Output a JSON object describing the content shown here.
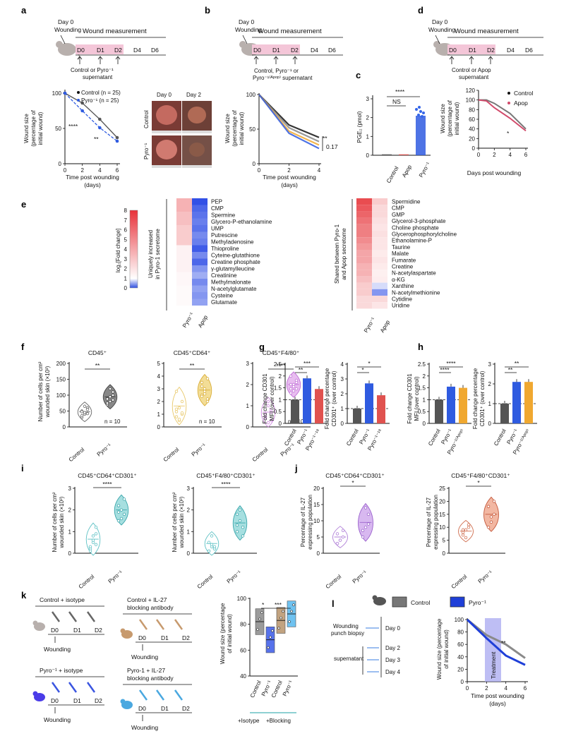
{
  "panel_labels": {
    "a": "a",
    "b": "b",
    "c": "c",
    "d": "d",
    "e": "e",
    "f": "f",
    "g": "g",
    "h": "h",
    "i": "i",
    "j": "j",
    "k": "k",
    "l": "l"
  },
  "colors": {
    "control": "#555555",
    "pyro": "#2f5be0",
    "pyro18": "#e0524f",
    "apop": "#f0a830",
    "teal": "#4bb3b8",
    "violet": "#b07fd8",
    "gold": "#e8c86a",
    "pink": "#d14b6b",
    "wound_band": "#f4c6d8"
  },
  "a": {
    "day0_wounding": "Day 0\nWounding",
    "wound_measurement": "Wound measurement",
    "days": [
      "D0",
      "D1",
      "D2",
      "D4",
      "D6"
    ],
    "treatment": "Control or Pyro⁻¹\nsupernatant",
    "legend": [
      "Control (n = 25)",
      "Pyro⁻¹ (n = 25)"
    ],
    "ylabel": "Wound size\n(percentage of\ninitial wound)",
    "xlabel": "Time post wounding\n(days)",
    "sig": [
      "****",
      "**"
    ],
    "photo_cols": [
      "Day 0",
      "Day 2"
    ],
    "photo_rows": [
      "Control",
      "Pyro⁻¹"
    ]
  },
  "b": {
    "day0_wounding": "Day 0\nWounding",
    "wound_measurement": "Wound measurement",
    "days": [
      "D0",
      "D1",
      "D2",
      "D4",
      "D6"
    ],
    "treatment": "Control, Pyro⁻¹ or\nPyro⁻¹⁽ᴬᵖᵒᵖ⁾ supernatant",
    "ylabel": "Wound size\n(percentage of\ninitial wound)",
    "xlabel": "Time post wounding\n(days)",
    "sig": [
      "**",
      "0.17"
    ]
  },
  "c": {
    "ylabel": "PGE₂ (pmol)",
    "categories": [
      "Control",
      "Apop",
      "Pyro⁻¹"
    ],
    "sig": [
      "****",
      "NS"
    ]
  },
  "d": {
    "day0_wounding": "Day 0\nWounding",
    "wound_measurement": "Wound measurement",
    "days": [
      "D0",
      "D1",
      "D2",
      "D4",
      "D6"
    ],
    "treatment": "Control or Apop\nsupernatant",
    "legend": [
      "Control",
      "Apop"
    ],
    "ylabel": "Wound size\n(percentage of\ninitial wound)",
    "xlabel": "Days post wounding",
    "sig": [
      "*"
    ]
  },
  "e": {
    "colorbar_label": "log₂[Fold change]",
    "colorbar_ticks": [
      "8",
      "7",
      "6",
      "5",
      "4",
      "3",
      "2",
      "1",
      "0"
    ],
    "left_group": "Uniquely increased\nin Pyro-1  secretome",
    "right_group": "Shared between Pyro-1\nand Apop secretome",
    "columns": [
      "Pyro⁻¹",
      "Apop"
    ],
    "left_rows": [
      "PEP",
      "CMP",
      "Spermine",
      "Glycero-P-ethanolamine",
      "UMP",
      "Putrescine",
      "Methyladenosine",
      "Thioproline",
      "Cyteine-glutathione",
      "Creatine phosphate",
      "γ-glutamylleucine",
      "Creatinine",
      "Methylmalonate",
      "N-acetylglutamate",
      "Cysteine",
      "Glutamate"
    ],
    "right_rows": [
      "Spermidine",
      "CMP",
      "GMP",
      "Glycerol-3-phosphate",
      "Choline phosphate",
      "Glycerophosphorylcholine",
      "Ethanolamine-P",
      "Taurine",
      "Malate",
      "Fumarate",
      "Creatine",
      "N-acetylaspartate",
      "α-KG",
      "Xanthine",
      "N-acetylmethionine",
      "Cytidine",
      "Uridine"
    ]
  },
  "f": {
    "ylabel": "Number of cells per cm²\nwounded skin (×10³)",
    "titles": [
      "CD45⁺",
      "CD45⁺CD64⁺",
      "CD45⁺F4/80⁺"
    ],
    "categories": [
      "Control",
      "Pyro⁻¹"
    ],
    "n": "n = 10",
    "sig": [
      "**",
      "**",
      "****"
    ]
  },
  "g": {
    "ylabel1": "Fold change CD301\nMFI (over control)",
    "ylabel2": "Fold change percentage\nCD301⁺ (over control)",
    "categories": [
      "Control",
      "Pyro⁻¹",
      "Pyro⁻¹⁻¹⁸"
    ],
    "sig1": [
      "***",
      "**"
    ],
    "sig2": [
      "*",
      "*"
    ]
  },
  "h": {
    "ylabel1": "Fold change CD301\nMFI (over control)",
    "ylabel2": "Fold change percentage\nCD301⁺ (over control)",
    "categories": [
      "Control",
      "Pyro⁻¹",
      "Pyro⁻¹⁽ᴬᵖᵒᵖ⁾"
    ],
    "sig1": [
      "****",
      "****"
    ],
    "sig2": [
      "**",
      "**"
    ]
  },
  "i": {
    "titles": [
      "CD45⁺CD64⁺CD301⁺",
      "CD45⁺F4/80⁺CD301⁺"
    ],
    "ylabel": "Number of cells per cm²\nwounded skin (×10³)",
    "categories": [
      "Control",
      "Pyro⁻¹"
    ],
    "sig": [
      "****",
      "****"
    ]
  },
  "j": {
    "titles": [
      "CD45⁺CD64⁺CD301⁺",
      "CD45⁺F4/80⁺CD301⁺"
    ],
    "ylabel": "Percentage of IL-27\nexpressing population",
    "categories": [
      "Control",
      "Pyro⁻¹"
    ],
    "sig": [
      "*",
      "*"
    ]
  },
  "k": {
    "groups": [
      "Control + isotype",
      "Control + IL-27\nblocking antibody",
      "Pyro⁻¹ + isotype",
      "Pyro-1 + IL-27\nblocking antibody"
    ],
    "days": [
      "D0",
      "D1",
      "D2"
    ],
    "wounding": "Wounding",
    "ylabel": "Wound size (percentage\nof initial wound)",
    "categories": [
      "Control",
      "Pyro⁻¹",
      "Control",
      "Pyro⁻¹"
    ],
    "group_labels": [
      "+Isotype",
      "+Blocking"
    ],
    "sig": [
      "*",
      "***"
    ]
  },
  "l": {
    "legend": [
      "Control",
      "Pyro⁻¹"
    ],
    "steps": [
      "Wounding\npunch biopsy",
      "supernatant"
    ],
    "days": [
      "Day 0",
      "Day 2",
      "Day 3",
      "Day 4"
    ],
    "treatment": "Treatment",
    "ylabel": "Wound size (percentage\nof initial wound)",
    "xlabel": "Time post wounding\n(days)",
    "sig": [
      "**"
    ]
  },
  "chart_data": [
    {
      "panel": "a",
      "type": "line",
      "x": [
        0,
        2,
        4,
        6
      ],
      "xlim": [
        0,
        6
      ],
      "ylim": [
        0,
        100
      ],
      "series": [
        {
          "name": "Control (n = 25)",
          "values": [
            100,
            86,
            63,
            37
          ]
        },
        {
          "name": "Pyro⁻¹ (n = 25)",
          "values": [
            100,
            75,
            51,
            32
          ]
        }
      ]
    },
    {
      "panel": "b",
      "type": "line",
      "x": [
        0,
        2,
        4
      ],
      "xlim": [
        0,
        4
      ],
      "ylim": [
        0,
        100
      ],
      "series": [
        {
          "values": [
            100,
            56,
            38
          ]
        },
        {
          "values": [
            100,
            52,
            32
          ]
        },
        {
          "values": [
            100,
            47,
            27
          ]
        },
        {
          "values": [
            100,
            44,
            22
          ]
        }
      ]
    },
    {
      "panel": "c",
      "type": "bar",
      "categories": [
        "Control",
        "Apop",
        "Pyro⁻¹"
      ],
      "values": [
        0.05,
        0.05,
        2.1
      ],
      "ylim": [
        0,
        3
      ]
    },
    {
      "panel": "d",
      "type": "line",
      "x": [
        0,
        1,
        2,
        4,
        6
      ],
      "xlim": [
        0,
        6
      ],
      "ylim": [
        0,
        120
      ],
      "series": [
        {
          "name": "Control",
          "values": [
            100,
            100,
            93,
            72,
            40
          ]
        },
        {
          "name": "Apop",
          "values": [
            100,
            98,
            84,
            62,
            36
          ]
        }
      ]
    },
    {
      "panel": "f",
      "type": "scatter",
      "ylim_list": [
        [
          0,
          200
        ],
        [
          0,
          5
        ],
        [
          0,
          3
        ]
      ],
      "series": [
        {
          "name": "CD45⁺",
          "control": [
            50,
            40,
            60,
            30,
            45,
            55,
            35,
            65,
            42,
            48
          ],
          "pyro": [
            90,
            80,
            100,
            70,
            120,
            85,
            75,
            95,
            110,
            88
          ]
        },
        {
          "name": "CD45⁺CD64⁺",
          "control": [
            1.2,
            0.5,
            2.0,
            0.8,
            1.5,
            1.0,
            2.8,
            0.6,
            1.1,
            1.4
          ],
          "pyro": [
            2.5,
            3.0,
            2.2,
            3.5,
            2.8,
            2.0,
            3.2,
            2.6,
            3.8,
            2.4
          ]
        },
        {
          "name": "CD45⁺F4/80⁺",
          "control": [
            0.5,
            0.2,
            0.8,
            0.4,
            1.0,
            0.3,
            0.6,
            1.2,
            0.7,
            0.4
          ],
          "pyro": [
            1.8,
            2.0,
            2.2,
            1.6,
            1.9,
            2.1,
            2.4,
            1.7,
            1.8,
            2.0
          ]
        }
      ]
    },
    {
      "panel": "g",
      "type": "bar",
      "categories": [
        "Control",
        "Pyro⁻¹",
        "Pyro⁻¹⁻¹⁸"
      ],
      "series": [
        {
          "name": "Fold change CD301 MFI",
          "values": [
            1.0,
            1.9,
            1.45
          ]
        },
        {
          "name": "Fold change percentage CD301⁺",
          "values": [
            1.0,
            2.7,
            1.9
          ]
        }
      ],
      "ylim_list": [
        [
          0,
          2.5
        ],
        [
          0,
          4
        ]
      ]
    },
    {
      "panel": "h",
      "type": "bar",
      "categories": [
        "Control",
        "Pyro⁻¹",
        "Pyro⁻¹⁽ᴬᵖᵒᵖ⁾"
      ],
      "series": [
        {
          "name": "Fold change CD301 MFI",
          "values": [
            1.0,
            1.55,
            1.5
          ]
        },
        {
          "name": "Fold change percentage CD301⁺",
          "values": [
            1.0,
            2.1,
            2.1
          ]
        }
      ],
      "ylim_list": [
        [
          0,
          2.5
        ],
        [
          0,
          3
        ]
      ]
    },
    {
      "panel": "i",
      "type": "scatter",
      "ylim": [
        0,
        3
      ],
      "series": [
        {
          "name": "CD45⁺CD64⁺CD301⁺",
          "control": [
            0.2,
            0.5,
            1.2,
            0.3,
            0.8,
            0.4,
            0.1,
            0.6,
            0.9
          ],
          "pyro": [
            1.5,
            2.0,
            1.8,
            2.2,
            1.6,
            2.5,
            1.9
          ]
        },
        {
          "name": "CD45⁺F4/80⁺CD301⁺",
          "control": [
            0.1,
            0.3,
            0.2,
            0.5,
            0.8,
            0.2,
            0.1,
            0.4,
            0.3
          ],
          "pyro": [
            1.0,
            1.5,
            1.2,
            1.8,
            2.0,
            0.8,
            1.3
          ]
        }
      ]
    },
    {
      "panel": "j",
      "type": "scatter",
      "ylim_list": [
        [
          0,
          20
        ],
        [
          0,
          25
        ]
      ],
      "series": [
        {
          "name": "CD45⁺CD64⁺CD301⁺",
          "control": [
            3,
            4,
            5,
            6,
            4,
            7,
            3
          ],
          "pyro": [
            5,
            8,
            12,
            7,
            14,
            9
          ]
        },
        {
          "name": "CD45⁺F4/80⁺CD301⁺",
          "control": [
            7,
            9,
            10,
            8,
            6,
            11,
            9
          ],
          "pyro": [
            10,
            14,
            20,
            18,
            12,
            15
          ]
        }
      ]
    },
    {
      "panel": "k",
      "type": "bar",
      "categories": [
        "Control",
        "Pyro⁻¹",
        "Control",
        "Pyro⁻¹"
      ],
      "values": [
        82,
        68,
        83,
        88
      ],
      "ylim": [
        40,
        100
      ]
    },
    {
      "panel": "l",
      "type": "line",
      "x": [
        0,
        2,
        4,
        6
      ],
      "xlim": [
        0,
        6
      ],
      "ylim": [
        0,
        100
      ],
      "series": [
        {
          "name": "Control",
          "values": [
            100,
            75,
            60,
            38
          ]
        },
        {
          "name": "Pyro⁻¹",
          "values": [
            100,
            70,
            42,
            27
          ]
        }
      ]
    }
  ]
}
